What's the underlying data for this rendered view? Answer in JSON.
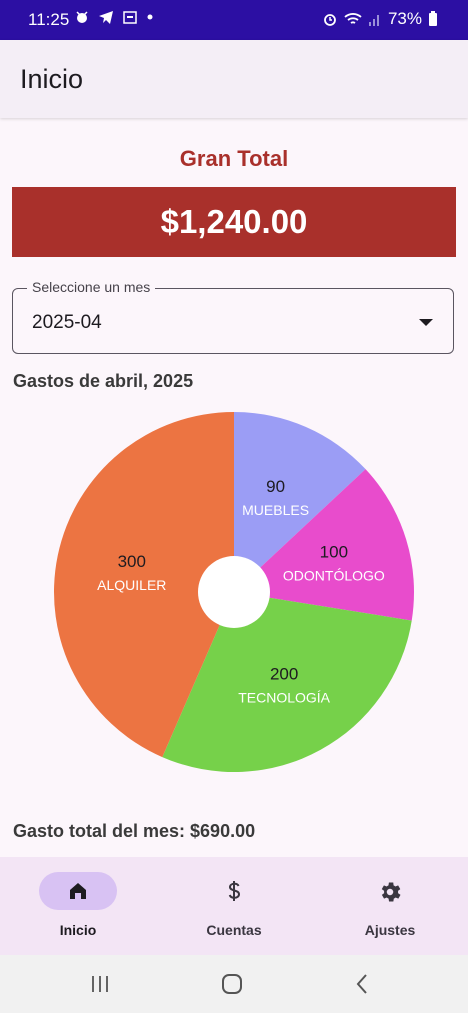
{
  "status": {
    "time": "11:25",
    "battery": "73%"
  },
  "app_bar": {
    "title": "Inicio"
  },
  "summary": {
    "grand_title": "Gran Total",
    "grand_total": "$1,240.00"
  },
  "month_select": {
    "label": "Seleccione un mes",
    "value": "2025-04"
  },
  "month_heading": "Gastos de abril, 2025",
  "chart_data": {
    "type": "pie",
    "categories": [
      "MUEBLES",
      "ODONTÓLOGO",
      "TECNOLOGÍA",
      "ALQUILER"
    ],
    "values": [
      90,
      100,
      200,
      300
    ],
    "colors": [
      "#9b9df5",
      "#e84ccc",
      "#76d14a",
      "#ec7442"
    ],
    "donut_hole": true
  },
  "month_total": "Gasto total del mes: $690.00",
  "bottom_nav": {
    "items": [
      {
        "label": "Inicio",
        "icon": "home-icon",
        "active": true
      },
      {
        "label": "Cuentas",
        "icon": "dollar-icon",
        "active": false
      },
      {
        "label": "Ajustes",
        "icon": "gear-icon",
        "active": false
      }
    ]
  },
  "system_nav": [
    "recents",
    "home",
    "back"
  ]
}
